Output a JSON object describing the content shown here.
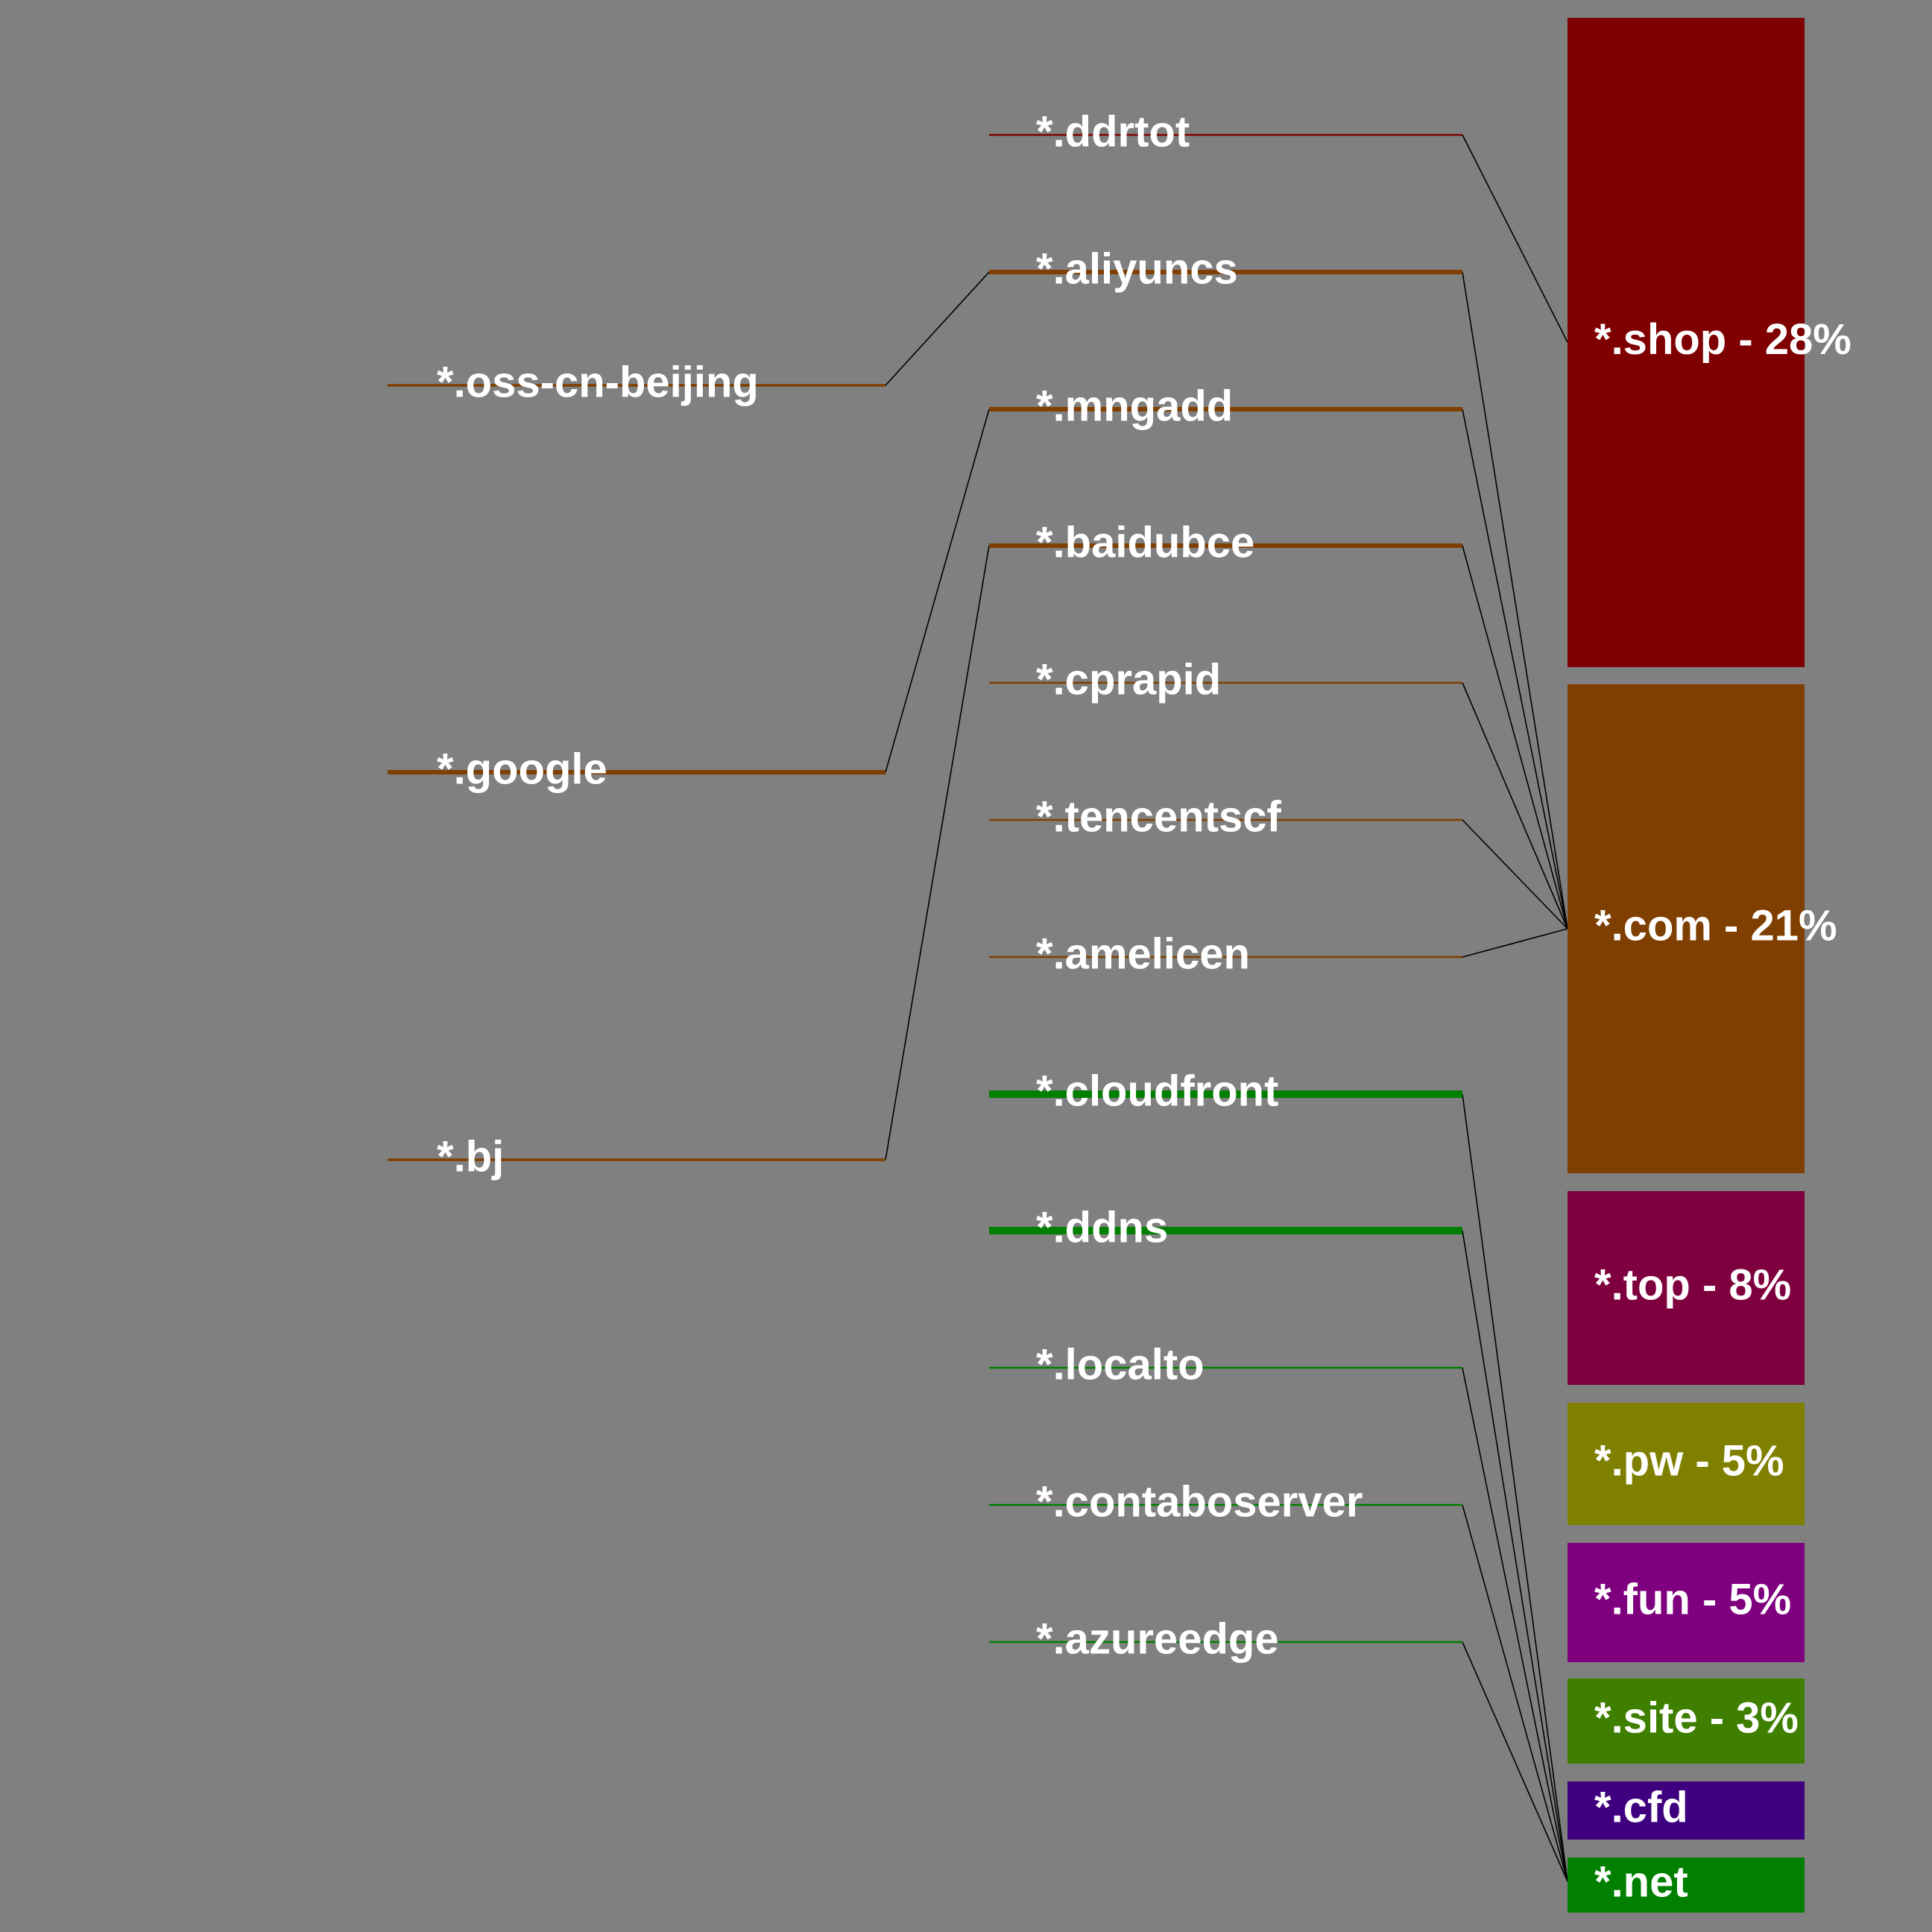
{
  "colors": {
    "background": "#808080",
    "connector": "#000000",
    "label_text": "#ffffff"
  },
  "tlds": [
    {
      "id": "shop",
      "label": "*.shop - 28%",
      "share": 28,
      "color": "#7f0000"
    },
    {
      "id": "com",
      "label": "*.com - 21%",
      "share": 21,
      "color": "#7f3f00"
    },
    {
      "id": "top",
      "label": "*.top - 8%",
      "share": 8,
      "color": "#7f003f"
    },
    {
      "id": "pw",
      "label": "*.pw - 5%",
      "share": 5,
      "color": "#7f7f00"
    },
    {
      "id": "fun",
      "label": "*.fun - 5%",
      "share": 5,
      "color": "#7f007f"
    },
    {
      "id": "site",
      "label": "*.site - 3%",
      "share": 3,
      "color": "#3f7f00"
    },
    {
      "id": "cfd",
      "label": "*.cfd",
      "color": "#3f007f"
    },
    {
      "id": "net",
      "label": "*.net",
      "color": "#007f00"
    }
  ],
  "domains": [
    {
      "id": "ddrtot",
      "label": "*.ddrtot",
      "tld": "shop",
      "weight": 1
    },
    {
      "id": "aliyuncs",
      "label": "*.aliyuncs",
      "tld": "com",
      "weight": 2
    },
    {
      "id": "mngadd",
      "label": "*.mngadd",
      "tld": "com",
      "weight": 2
    },
    {
      "id": "baidubce",
      "label": "*.baidubce",
      "tld": "com",
      "weight": 2
    },
    {
      "id": "cprapid",
      "label": "*.cprapid",
      "tld": "com",
      "weight": 1
    },
    {
      "id": "tencentscf",
      "label": "*.tencentscf",
      "tld": "com",
      "weight": 1
    },
    {
      "id": "amelicen",
      "label": "*.amelicen",
      "tld": "com",
      "weight": 1
    },
    {
      "id": "cloudfront",
      "label": "*.cloudfront",
      "tld": "net",
      "weight": 4
    },
    {
      "id": "ddns",
      "label": "*.ddns",
      "tld": "net",
      "weight": 4
    },
    {
      "id": "localto",
      "label": "*.localto",
      "tld": "net",
      "weight": 1
    },
    {
      "id": "contaboserver",
      "label": "*.contaboserver",
      "tld": "net",
      "weight": 1
    },
    {
      "id": "azureedge",
      "label": "*.azureedge",
      "tld": "net",
      "weight": 1
    }
  ],
  "subdomains": [
    {
      "id": "oss-cn-beijing",
      "label": "*.oss-cn-beijing",
      "domain": "aliyuncs",
      "weight": 1
    },
    {
      "id": "google",
      "label": "*.google",
      "domain": "mngadd",
      "weight": 2
    },
    {
      "id": "bj",
      "label": "*.bj",
      "domain": "baidubce",
      "weight": 1
    }
  ]
}
